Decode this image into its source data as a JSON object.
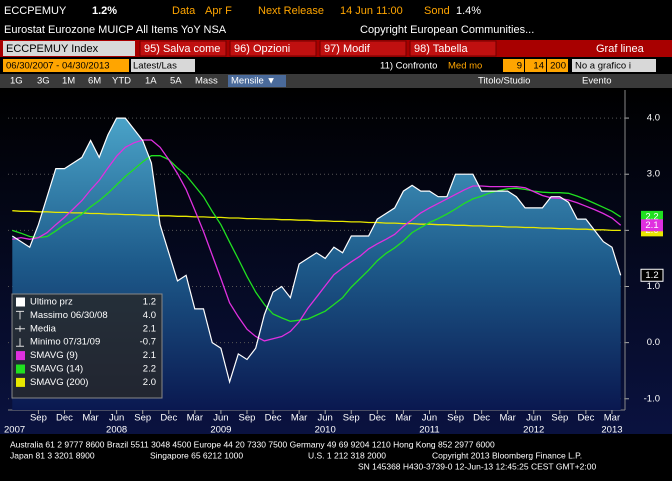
{
  "header": {
    "ticker": "ECCPEMUY",
    "last": "1.2%",
    "data_label": "Data",
    "data_value": "Apr F",
    "next_label": "Next Release",
    "next_value": "14 Jun 11:00",
    "survey_label": "Sond",
    "survey_value": "1.4%",
    "description": "Eurostat Eurozone MUICP All Items YoY NSA",
    "copyright": "Copyright European Communities..."
  },
  "toolbar": {
    "security": "ECCPEMUY Index",
    "buttons": [
      "95) Salva come",
      "96) Opzioni",
      "97) Modif",
      "98) Tabella"
    ],
    "chart_type": "Graf linea"
  },
  "settings": {
    "range": "06/30/2007 - 04/30/2013",
    "period": "Latest/Las",
    "compare": "11) Confronto",
    "average": "Med mo",
    "periods": [
      "9",
      "14",
      "200"
    ],
    "no_chart": "No a grafico i"
  },
  "tabs": {
    "ranges": [
      "1G",
      "3G",
      "1M",
      "6M",
      "YTD",
      "1A",
      "5A",
      "Mass"
    ],
    "frequency": "Mensile ▼",
    "study": "Titolo/Studio",
    "event": "Evento"
  },
  "chart_data": {
    "type": "line",
    "categories": [
      null,
      null,
      null,
      "Sep",
      null,
      null,
      "Dec",
      null,
      null,
      "Mar",
      null,
      null,
      "Jun",
      null,
      null,
      "Sep",
      null,
      null,
      "Dec",
      null,
      null,
      "Mar",
      null,
      null,
      "Jun",
      null,
      null,
      "Sep",
      null,
      null,
      "Dec",
      null,
      null,
      "Mar",
      null,
      null,
      "Jun",
      null,
      null,
      "Sep",
      null,
      null,
      "Dec",
      null,
      null,
      "Mar",
      null,
      null,
      "Jun",
      null,
      null,
      "Sep",
      null,
      null,
      "Dec",
      null,
      null,
      "Mar",
      null,
      null,
      "Jun",
      null,
      null,
      "Sep",
      null,
      null,
      "Dec",
      null,
      null,
      "Mar",
      null
    ],
    "years": [
      "2007",
      "2008",
      "2009",
      "2010",
      "2011",
      "2012",
      "2013"
    ],
    "series": [
      {
        "name": "Ultimo prz",
        "color": "#ffffff",
        "legend_value": "1.2",
        "values": [
          1.9,
          1.8,
          1.7,
          2.1,
          2.6,
          3.1,
          3.1,
          3.2,
          3.3,
          3.6,
          3.3,
          3.7,
          4.0,
          4.0,
          3.8,
          3.6,
          3.2,
          2.1,
          1.6,
          1.1,
          1.2,
          0.6,
          0.6,
          0.0,
          -0.1,
          -0.7,
          -0.2,
          -0.3,
          -0.1,
          0.5,
          0.9,
          1.0,
          0.8,
          1.4,
          1.5,
          1.6,
          1.5,
          1.7,
          1.6,
          1.9,
          1.9,
          1.9,
          2.2,
          2.3,
          2.4,
          2.7,
          2.8,
          2.7,
          2.7,
          2.6,
          2.6,
          3.0,
          3.0,
          3.0,
          2.7,
          2.7,
          2.7,
          2.7,
          2.6,
          2.4,
          2.4,
          2.4,
          2.6,
          2.6,
          2.5,
          2.2,
          2.2,
          2.0,
          1.8,
          1.7,
          1.2
        ]
      },
      {
        "name": "SMAVG (9)",
        "color": "#e030e0",
        "legend_value": "2.1",
        "values": [
          1.84,
          1.87,
          1.84,
          1.87,
          1.96,
          2.1,
          2.23,
          2.38,
          2.53,
          2.72,
          2.89,
          3.11,
          3.32,
          3.48,
          3.56,
          3.61,
          3.61,
          3.48,
          3.26,
          3.01,
          2.73,
          2.36,
          1.98,
          1.56,
          1.14,
          0.71,
          0.46,
          0.24,
          0.11,
          0.03,
          0.07,
          0.11,
          0.2,
          0.37,
          0.61,
          0.81,
          1.01,
          1.21,
          1.33,
          1.44,
          1.54,
          1.67,
          1.76,
          1.84,
          1.93,
          2.07,
          2.19,
          2.31,
          2.4,
          2.48,
          2.56,
          2.64,
          2.72,
          2.79,
          2.79,
          2.78,
          2.78,
          2.78,
          2.78,
          2.76,
          2.69,
          2.62,
          2.58,
          2.57,
          2.54,
          2.49,
          2.43,
          2.37,
          2.3,
          2.22,
          2.09
        ]
      },
      {
        "name": "SMAVG (14)",
        "color": "#20e020",
        "legend_value": "2.2",
        "values": [
          2.0,
          1.95,
          1.89,
          1.87,
          1.89,
          1.99,
          2.1,
          2.19,
          2.29,
          2.42,
          2.53,
          2.66,
          2.81,
          2.96,
          3.09,
          3.22,
          3.33,
          3.33,
          3.26,
          3.11,
          2.98,
          2.79,
          2.6,
          2.34,
          2.1,
          1.79,
          1.49,
          1.18,
          0.9,
          0.68,
          0.51,
          0.44,
          0.38,
          0.4,
          0.42,
          0.49,
          0.56,
          0.68,
          0.8,
          0.99,
          1.14,
          1.29,
          1.46,
          1.59,
          1.69,
          1.81,
          1.96,
          2.05,
          2.14,
          2.21,
          2.29,
          2.38,
          2.48,
          2.56,
          2.61,
          2.67,
          2.71,
          2.74,
          2.75,
          2.73,
          2.7,
          2.68,
          2.67,
          2.67,
          2.66,
          2.61,
          2.55,
          2.48,
          2.41,
          2.34,
          2.24
        ]
      },
      {
        "name": "SMAVG (200)",
        "color": "#e8e800",
        "legend_value": "2.0",
        "values": [
          2.35,
          2.34,
          2.34,
          2.33,
          2.33,
          2.32,
          2.32,
          2.31,
          2.31,
          2.3,
          2.3,
          2.29,
          2.29,
          2.28,
          2.28,
          2.27,
          2.27,
          2.26,
          2.26,
          2.25,
          2.25,
          2.24,
          2.24,
          2.23,
          2.23,
          2.22,
          2.22,
          2.21,
          2.21,
          2.2,
          2.2,
          2.19,
          2.19,
          2.18,
          2.18,
          2.17,
          2.17,
          2.16,
          2.16,
          2.15,
          2.15,
          2.14,
          2.14,
          2.13,
          2.13,
          2.12,
          2.12,
          2.11,
          2.11,
          2.1,
          2.1,
          2.09,
          2.09,
          2.08,
          2.08,
          2.07,
          2.07,
          2.06,
          2.06,
          2.05,
          2.05,
          2.04,
          2.04,
          2.03,
          2.03,
          2.02,
          2.02,
          2.01,
          2.01,
          2.0,
          2.0
        ]
      }
    ],
    "legend_stats": [
      {
        "label": "Massimo 06/30/08",
        "value": "4.0"
      },
      {
        "label": "Media",
        "value": "2.1"
      },
      {
        "label": "Minimo 07/31/09",
        "value": "-0.7"
      }
    ],
    "ylim": [
      -1.2,
      4.5
    ],
    "yticks": [
      {
        "value": -1,
        "label": "-1.0"
      },
      {
        "value": 0,
        "label": "0.0"
      },
      {
        "value": 1,
        "label": "1.0"
      },
      {
        "value": 2,
        "label": "2.0"
      },
      {
        "value": 3,
        "label": "3.0"
      },
      {
        "value": 4,
        "label": "4.0"
      }
    ],
    "grid": true
  },
  "footer": [
    [
      "Australia 61 2 9777 8600 Brazil 5511 3048 4500 Europe 44 20 7330 7500 Germany 49 69 9204 1210 Hong Kong 852 2977 6000"
    ],
    [
      "Japan 81 3 3201 8900",
      "Singapore 65 6212 1000",
      "U.S. 1 212 318 2000",
      "Copyright 2013 Bloomberg Finance L.P."
    ],
    [
      "SN 145368 H430-3739-0 12-Jun-13 12:45:25 CEST GMT+2:00"
    ]
  ]
}
